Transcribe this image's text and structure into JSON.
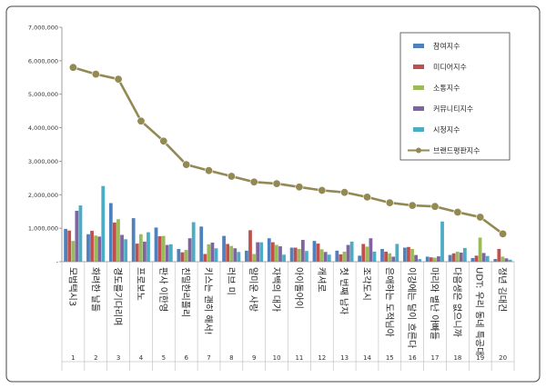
{
  "chart_data": {
    "type": "bar",
    "ylim": [
      0,
      7000000
    ],
    "yticks": [
      "-",
      "1,000,000",
      "2,000,000",
      "3,000,000",
      "4,000,000",
      "5,000,000",
      "6,000,000",
      "7,000,000"
    ],
    "categories": [
      "모범택시3",
      "화려한 날들",
      "경도를기다리며",
      "프로보노",
      "판사 이한영",
      "친밀한리플리",
      "키스는 괜히 해서!",
      "러브 미",
      "얄미운 사랑",
      "자백의 대가",
      "아이돌아이",
      "캐셔로",
      "첫 번째 남자",
      "조각도시",
      "은애하는 도적님아",
      "이강에는 달이 흐른다",
      "마리와 별난 아빠들",
      "다음생은 없으니까",
      "UDT: 우리 동네 특공대",
      "정년 김대건"
    ],
    "index_labels": [
      "1",
      "2",
      "3",
      "4",
      "5",
      "6",
      "7",
      "8",
      "9",
      "10",
      "11",
      "12",
      "13",
      "14",
      "15",
      "16",
      "17",
      "18",
      "19",
      "20"
    ],
    "legend_position": "top-right",
    "series": [
      {
        "name": "참여지수",
        "kind": "bar",
        "color": "#4f81bd",
        "values": [
          980000,
          820000,
          1750000,
          1300000,
          1020000,
          380000,
          1050000,
          770000,
          330000,
          700000,
          420000,
          620000,
          330000,
          180000,
          380000,
          420000,
          150000,
          200000,
          110000,
          80000
        ]
      },
      {
        "name": "미디어지수",
        "kind": "bar",
        "color": "#c0504d",
        "values": [
          930000,
          920000,
          1170000,
          540000,
          760000,
          280000,
          230000,
          530000,
          940000,
          580000,
          420000,
          540000,
          220000,
          530000,
          300000,
          440000,
          130000,
          250000,
          180000,
          380000
        ]
      },
      {
        "name": "소통지수",
        "kind": "bar",
        "color": "#9bbb59",
        "values": [
          620000,
          780000,
          1270000,
          820000,
          770000,
          350000,
          520000,
          470000,
          230000,
          500000,
          380000,
          370000,
          300000,
          450000,
          250000,
          380000,
          120000,
          300000,
          720000,
          150000
        ]
      },
      {
        "name": "커뮤니티지수",
        "kind": "bar",
        "color": "#8064a2",
        "values": [
          1520000,
          750000,
          800000,
          600000,
          500000,
          700000,
          570000,
          400000,
          580000,
          460000,
          650000,
          290000,
          500000,
          700000,
          150000,
          200000,
          160000,
          270000,
          260000,
          100000
        ]
      },
      {
        "name": "시청지수",
        "kind": "bar",
        "color": "#4bacc6",
        "values": [
          1680000,
          2260000,
          670000,
          880000,
          520000,
          1180000,
          400000,
          290000,
          580000,
          210000,
          320000,
          210000,
          600000,
          300000,
          530000,
          80000,
          1200000,
          410000,
          170000,
          60000
        ]
      },
      {
        "name": "브랜드평판지수",
        "kind": "line",
        "color": "#938953",
        "values": [
          5800000,
          5600000,
          5450000,
          4200000,
          3600000,
          2900000,
          2720000,
          2550000,
          2380000,
          2330000,
          2230000,
          2130000,
          2070000,
          1930000,
          1760000,
          1680000,
          1650000,
          1480000,
          1330000,
          830000
        ]
      }
    ]
  }
}
